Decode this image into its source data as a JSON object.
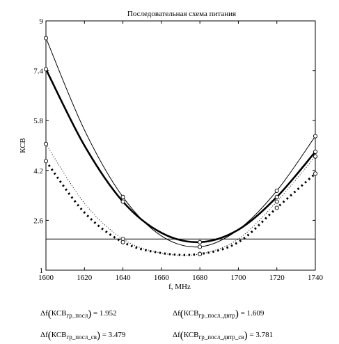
{
  "chart_data": {
    "type": "line",
    "title": "Последовательная схема питания",
    "xlabel": "f, MHz",
    "ylabel": "КСВ",
    "xlim": [
      1600,
      1740
    ],
    "ylim": [
      1,
      9
    ],
    "xticks": [
      1600,
      1620,
      1640,
      1660,
      1680,
      1700,
      1720,
      1740
    ],
    "xtick_labels": [
      "1600",
      "1620",
      "1640",
      "1660",
      "1680",
      "1700",
      "1720",
      "1740"
    ],
    "yticks": [
      1,
      2.6,
      4.2,
      5.8,
      7.4,
      9
    ],
    "ytick_labels": [
      "1",
      "2.6",
      "4.2",
      "5.8",
      "7.4",
      "9"
    ],
    "grid": false,
    "legend": "none",
    "reference_line": 2.0,
    "series": [
      {
        "style": "thin-solid",
        "x": [
          1600,
          1620,
          1640,
          1660,
          1680,
          1700,
          1720,
          1740
        ],
        "y": [
          8.45,
          5.5,
          3.35,
          2.1,
          1.75,
          2.3,
          3.55,
          5.3
        ]
      },
      {
        "style": "thick-solid",
        "x": [
          1600,
          1620,
          1640,
          1660,
          1680,
          1700,
          1720,
          1740
        ],
        "y": [
          7.45,
          5.0,
          3.2,
          2.2,
          1.9,
          2.3,
          3.35,
          4.8
        ]
      },
      {
        "style": "thin-dotted",
        "x": [
          1600,
          1620,
          1640,
          1660,
          1680,
          1700,
          1720,
          1740
        ],
        "y": [
          5.05,
          3.15,
          2.0,
          1.55,
          1.52,
          2.0,
          3.2,
          4.65
        ]
      },
      {
        "style": "thick-dotted",
        "x": [
          1600,
          1620,
          1640,
          1660,
          1680,
          1700,
          1720,
          1740
        ],
        "y": [
          4.5,
          2.85,
          1.9,
          1.55,
          1.52,
          1.9,
          3.0,
          4.1
        ]
      }
    ]
  },
  "results": [
    {
      "prefix": "Δf",
      "base": "КСВ",
      "sub": "гр_посл",
      "value": "= 1.952"
    },
    {
      "prefix": "Δf",
      "base": "КСВ",
      "sub": "гр_посл_двтр",
      "value": "= 1.609"
    },
    {
      "prefix": "Δf",
      "base": "КСВ",
      "sub": "гр_посл_св",
      "value": "= 3.479"
    },
    {
      "prefix": "Δf",
      "base": "КСВ",
      "sub": "гр_посл_двтр_св",
      "value": "= 3.781"
    }
  ]
}
